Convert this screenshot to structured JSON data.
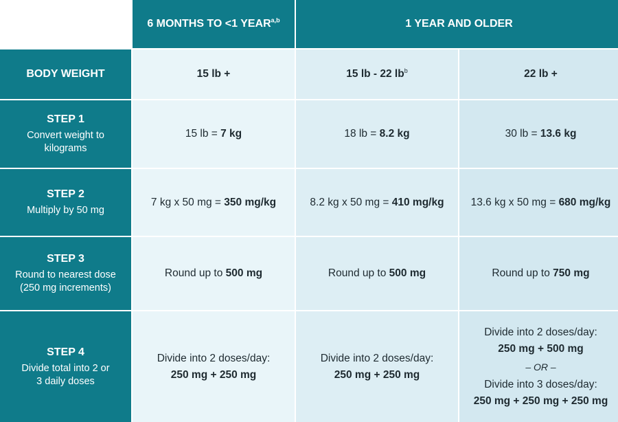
{
  "header": {
    "col1": "6 MONTHS TO <1 YEAR",
    "col1_sup": "a,b",
    "col2": "1 YEAR AND OLDER"
  },
  "rows": {
    "body_weight": {
      "label": "BODY WEIGHT",
      "c1": "15 lb +",
      "c2": "15 lb - 22 lb",
      "c2_sup": "b",
      "c3": "22 lb +"
    },
    "step1": {
      "title": "STEP 1",
      "desc": "Convert weight to kilograms",
      "c1_pre": "15 lb = ",
      "c1_val": "7 kg",
      "c2_pre": "18 lb = ",
      "c2_val": "8.2 kg",
      "c3_pre": "30 lb = ",
      "c3_val": "13.6 kg"
    },
    "step2": {
      "title": "STEP 2",
      "desc": "Multiply by 50 mg",
      "c1_pre": "7 kg x 50 mg = ",
      "c1_val": "350 mg/kg",
      "c2_pre": "8.2 kg x 50 mg = ",
      "c2_val": "410 mg/kg",
      "c3_pre": "13.6 kg x 50 mg = ",
      "c3_val": "680 mg/kg"
    },
    "step3": {
      "title": "STEP 3",
      "desc": "Round to nearest dose (250 mg increments)",
      "c1_pre": "Round up to ",
      "c1_val": "500 mg",
      "c2_pre": "Round up to ",
      "c2_val": "500 mg",
      "c3_pre": "Round up to ",
      "c3_val": "750 mg"
    },
    "step4": {
      "title": "STEP 4",
      "desc": "Divide total into 2 or 3 daily doses",
      "c1_line1": "Divide into 2 doses/day:",
      "c1_line2": "250 mg + 250 mg",
      "c2_line1": "Divide into 2 doses/day:",
      "c2_line2": "250 mg + 250 mg",
      "c3_line1": "Divide into 2 doses/day:",
      "c3_line2": "250 mg + 500 mg",
      "c3_or": "– OR –",
      "c3_line3": "Divide into 3 doses/day:",
      "c3_line4": "250 mg + 250 mg + 250 mg"
    }
  },
  "colors": {
    "teal": "#0f7b8a",
    "col1_bg": "#e9f5f9",
    "col2_bg": "#ddeef4",
    "col3_bg": "#d3e8f0"
  }
}
